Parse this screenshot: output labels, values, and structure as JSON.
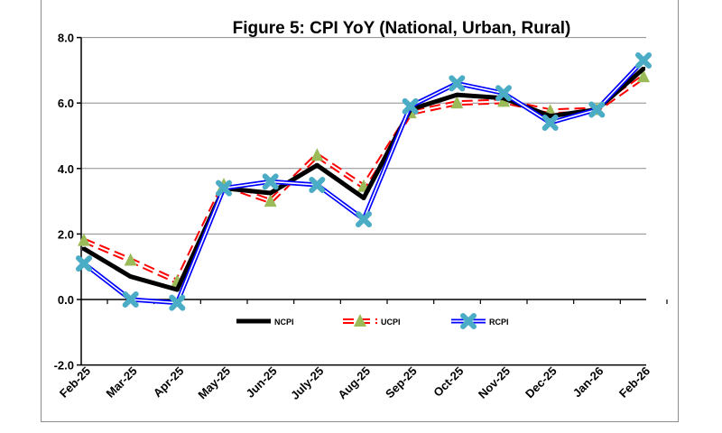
{
  "chart_data": {
    "type": "line",
    "title": "Figure 5: CPI YoY (National, Urban, Rural)",
    "categories": [
      "Feb-25",
      "Mar-25",
      "Apr-25",
      "May-25",
      "Jun-25",
      "July-25",
      "Aug-25",
      "Sep-25",
      "Oct-25",
      "Nov-25",
      "Dec-25",
      "Jan-26",
      "Feb-26"
    ],
    "ylim": [
      -2,
      8
    ],
    "yticks": [
      "-2.0",
      "0.0",
      "2.0",
      "4.0",
      "6.0",
      "8.0"
    ],
    "grid": true,
    "legend_position": "inside-bottom",
    "series": [
      {
        "name": "NCPI",
        "color": "#000000",
        "values": [
          1.55,
          0.7,
          0.3,
          3.4,
          3.25,
          4.1,
          3.1,
          5.8,
          6.25,
          6.15,
          5.6,
          5.8,
          7.05
        ]
      },
      {
        "name": "UCPI",
        "color": "#ff0000",
        "marker_color": "#9bbb59",
        "values": [
          1.8,
          1.2,
          0.55,
          3.5,
          3.0,
          4.4,
          3.45,
          5.7,
          6.0,
          6.05,
          5.75,
          5.8,
          6.8
        ]
      },
      {
        "name": "RCPI",
        "color": "#0000ff",
        "marker_color": "#4bacc6",
        "values": [
          1.1,
          0.0,
          -0.1,
          3.4,
          3.6,
          3.5,
          2.45,
          5.9,
          6.6,
          6.3,
          5.4,
          5.8,
          7.3
        ]
      }
    ]
  }
}
